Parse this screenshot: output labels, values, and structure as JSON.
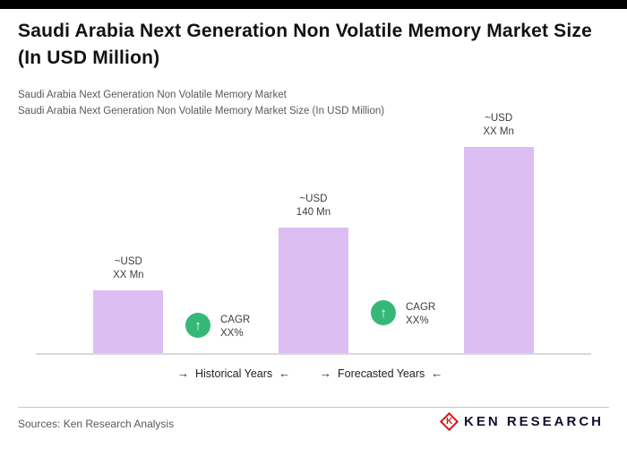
{
  "header": {
    "title": "Saudi Arabia Next Generation Non Volatile Memory Market Size (In USD Million)",
    "subtitle1": "Saudi Arabia Next Generation Non Volatile Memory Market",
    "subtitle2": "Saudi Arabia Next Generation Non Volatile Memory Market Size (In USD Million)"
  },
  "chart_data": {
    "type": "bar",
    "title": "Saudi Arabia Next Generation Non Volatile Memory Market Size (In USD Million)",
    "unit": "USD Million",
    "grid": false,
    "legend_position": "bottom",
    "bar_color": "#dcbef2",
    "baseline_color": "#d9d9d9",
    "badge_color": "#35b877",
    "bars": [
      {
        "label_line1": "~USD",
        "label_line2": "XX Mn",
        "value_estimate": 70
      },
      {
        "label_line1": "~USD",
        "label_line2": "140 Mn",
        "value_estimate": 140
      },
      {
        "label_line1": "~USD",
        "label_line2": "XX Mn",
        "value_estimate": 230
      }
    ],
    "cagr_badges": [
      {
        "line1": "CAGR",
        "line2": "XX%",
        "icon": "up-arrow"
      },
      {
        "line1": "CAGR",
        "line2": "XX%",
        "icon": "up-arrow"
      }
    ],
    "up_arrow_glyph": "↑",
    "axis_legends": [
      {
        "arrow_left": "→",
        "text": "Historical Years",
        "arrow_right": "←"
      },
      {
        "arrow_left": "→",
        "text": "Forecasted Years",
        "arrow_right": "←"
      }
    ]
  },
  "footer": {
    "sources": "Sources: Ken Research Analysis",
    "logo_mark": "K",
    "logo_text": "KEN RESEARCH"
  }
}
